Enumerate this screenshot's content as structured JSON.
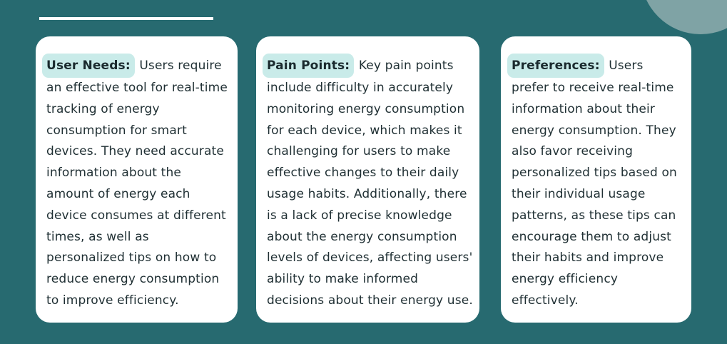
{
  "colors": {
    "background": "#276a70",
    "card": "#ffffff",
    "label_highlight": "#c9ebe9",
    "corner_circle": "#7fa3a5",
    "text": "#1f2f33"
  },
  "cards": [
    {
      "label": "User Needs:",
      "body": "Users require an effective tool for real-time tracking of energy consumption for smart devices. They need accurate information about the amount of energy each device consumes at different times, as well as personalized tips on how to reduce energy consumption to improve efficiency."
    },
    {
      "label": "Pain Points:",
      "body": "Key pain points include difficulty in accurately monitoring energy consumption for each device, which makes it challenging for users to make effective changes to their daily usage habits. Additionally, there is a lack of precise knowledge about the energy consumption levels of devices, affecting users' ability to make informed decisions about their energy use."
    },
    {
      "label": "Preferences:",
      "body": "Users prefer to receive real-time information about their energy consumption. They also favor receiving personalized tips based on their individual usage patterns, as these tips can encourage them to adjust their habits and improve energy efficiency effectively."
    }
  ]
}
